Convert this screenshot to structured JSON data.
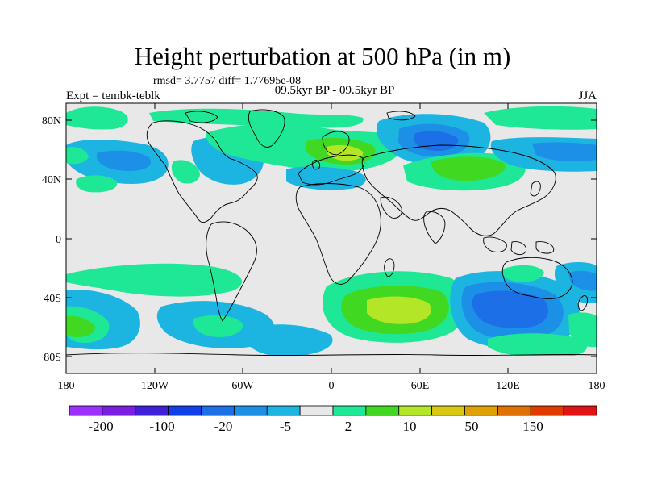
{
  "title": "Height perturbation at 500 hPa (in m)",
  "stats_line": "rmsd= 3.7757 diff= 1.77695e-08",
  "experiment_label": "Expt = tembk-teblk",
  "period_label": "09.5kyr BP - 09.5kyr BP",
  "season_label": "JJA",
  "map": {
    "lon_ticks": [
      "180",
      "120W",
      "60W",
      "0",
      "60E",
      "120E",
      "180"
    ],
    "lat_ticks": [
      "80N",
      "40N",
      "0",
      "40S",
      "80S"
    ],
    "background_color": "#e8e8e8"
  },
  "colorbar": {
    "colors": [
      "#9b30ff",
      "#7a1fe0",
      "#4020d8",
      "#1040e8",
      "#1c6fe6",
      "#1c8fe6",
      "#1cb4e0",
      "#e8e8e8",
      "#1ee896",
      "#40d820",
      "#b4e628",
      "#d8c814",
      "#e0a000",
      "#e07000",
      "#e03c00",
      "#e01414"
    ],
    "labels": [
      "-200",
      "-100",
      "-20",
      "-5",
      "2",
      "10",
      "50",
      "150"
    ]
  },
  "legend_colors": {
    "neg_strong": "#1c6fe6",
    "neg_weak": "#1cb4e0",
    "pos_weak": "#1ee896",
    "pos_mid": "#40d820",
    "pos_strong": "#b4e628",
    "pos_max": "#d8c814"
  }
}
